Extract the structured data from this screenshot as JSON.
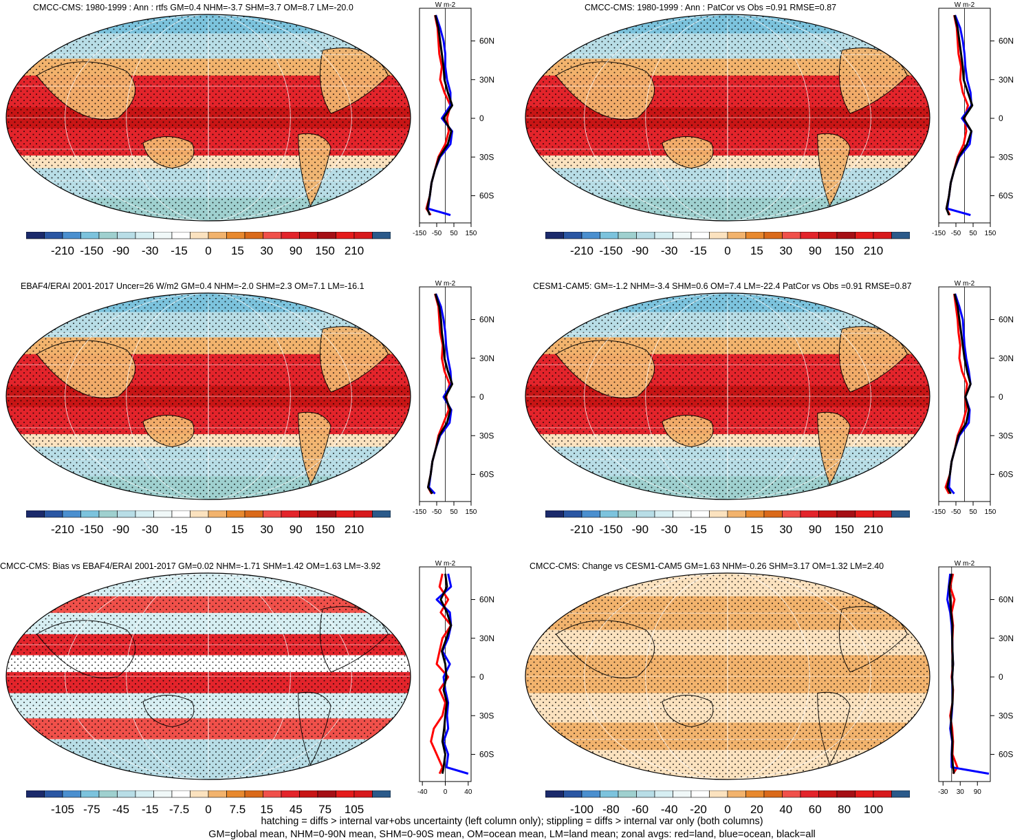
{
  "footer": {
    "line1": "hatching = diffs > internal var+obs uncertainty (left column only); stippling = diffs > internal var only (both columns)",
    "line2": "GM=global mean, NHM=0-90N mean, SHM=0-90S mean, OM=ocean mean, LM=land mean; zonal avgs: red=land, blue=ocean, black=all"
  },
  "colors": {
    "palette": [
      "#1b2a6b",
      "#2a56a3",
      "#4a8fcf",
      "#7cc3dd",
      "#9fd0cf",
      "#b8dde6",
      "#d6eef2",
      "#f0f8f8",
      "#ffffff",
      "#fbe2bf",
      "#f2b36d",
      "#e8892e",
      "#da6a1a",
      "#f0504a",
      "#e3242b",
      "#c81515",
      "#a50f15",
      "#e51b1b",
      "#d7191c",
      "#2b5a8a"
    ],
    "zonal_land": "#ff0000",
    "zonal_ocean": "#0000ff",
    "zonal_all": "#000000"
  },
  "chart_data": [
    {
      "type": "heatmap",
      "title": "CMCC-CMS: 1980-1999 : Ann : rtfs GM=0.4 NHM=-3.7 SHM=3.7 OM=8.7 LM=-20.0",
      "colorbar_ticks": [
        "-210",
        "-150",
        "-90",
        "-30",
        "-15",
        "0",
        "15",
        "30",
        "90",
        "150",
        "210"
      ],
      "zonal": {
        "unit": "W m-2",
        "xlim": [
          -150,
          150
        ],
        "xticks": [
          "-150",
          "-50",
          "50",
          "150"
        ],
        "lat_ticks": [
          "60N",
          "30N",
          "0",
          "30S",
          "60S"
        ],
        "lat": [
          80,
          70,
          60,
          50,
          40,
          30,
          20,
          10,
          0,
          -10,
          -20,
          -30,
          -40,
          -50,
          -60,
          -70,
          -75
        ],
        "land": [
          -60,
          -45,
          -40,
          -35,
          -20,
          -30,
          -5,
          30,
          10,
          20,
          0,
          -40,
          -60,
          -80,
          -90,
          -110,
          -85
        ],
        "ocean": [
          -55,
          -30,
          -10,
          0,
          0,
          10,
          30,
          30,
          -20,
          40,
          30,
          -30,
          -60,
          -80,
          -90,
          -100,
          30
        ],
        "all": [
          -58,
          -40,
          -30,
          -20,
          -10,
          -5,
          15,
          40,
          -10,
          35,
          15,
          -35,
          -60,
          -80,
          -90,
          -105,
          -90
        ]
      }
    },
    {
      "type": "heatmap",
      "title": "CMCC-CMS: 1980-1999 : Ann : PatCor vs Obs =0.91 RMSE=0.87",
      "colorbar_ticks": [
        "-210",
        "-150",
        "-90",
        "-30",
        "-15",
        "0",
        "15",
        "30",
        "90",
        "150",
        "210"
      ],
      "zonal": {
        "unit": "W m-2",
        "xlim": [
          -150,
          150
        ],
        "xticks": [
          "-150",
          "-50",
          "50",
          "150"
        ],
        "lat_ticks": [
          "60N",
          "30N",
          "0",
          "30S",
          "60S"
        ],
        "lat": [
          80,
          70,
          60,
          50,
          40,
          30,
          20,
          10,
          0,
          -10,
          -20,
          -30,
          -40,
          -50,
          -60,
          -70,
          -75
        ],
        "land": [
          -60,
          -45,
          -40,
          -35,
          -20,
          -25,
          -10,
          20,
          0,
          10,
          -5,
          -40,
          -60,
          -80,
          -90,
          -105,
          -85
        ],
        "ocean": [
          -55,
          -25,
          -10,
          0,
          5,
          15,
          35,
          40,
          -15,
          40,
          30,
          -30,
          -60,
          -80,
          -90,
          -100,
          35
        ],
        "all": [
          -58,
          -40,
          -30,
          -20,
          -10,
          -5,
          20,
          45,
          -5,
          40,
          15,
          -35,
          -60,
          -80,
          -90,
          -105,
          -90
        ]
      }
    },
    {
      "type": "heatmap",
      "title": "EBAF4/ERAI 2001-2017 Uncer=26 W/m2 GM=0.4 NHM=-2.0 SHM=2.3 OM=7.1 LM=-16.1",
      "colorbar_ticks": [
        "-210",
        "-150",
        "-90",
        "-30",
        "-15",
        "0",
        "15",
        "30",
        "90",
        "150",
        "210"
      ],
      "zonal": {
        "unit": "W m-2",
        "xlim": [
          -150,
          150
        ],
        "xticks": [
          "-150",
          "-50",
          "50",
          "150"
        ],
        "lat_ticks": [
          "60N",
          "30N",
          "0",
          "30S",
          "60S"
        ],
        "lat": [
          80,
          70,
          60,
          50,
          40,
          30,
          20,
          10,
          0,
          -10,
          -20,
          -30,
          -40,
          -50,
          -60,
          -70,
          -75
        ],
        "land": [
          -60,
          -40,
          -35,
          -30,
          -15,
          -20,
          -5,
          25,
          5,
          20,
          -10,
          -40,
          -55,
          -75,
          -85,
          -100,
          -80
        ],
        "ocean": [
          -55,
          -25,
          -10,
          0,
          5,
          15,
          30,
          35,
          -10,
          35,
          25,
          -30,
          -55,
          -75,
          -85,
          -95,
          -60
        ],
        "all": [
          -58,
          -35,
          -25,
          -20,
          -10,
          -5,
          15,
          40,
          0,
          30,
          10,
          -35,
          -55,
          -75,
          -85,
          -100,
          -75
        ]
      }
    },
    {
      "type": "heatmap",
      "title": "CESM1-CAM5: GM=-1.2 NHM=-3.4 SHM=0.6 OM=7.4 LM=-22.4 PatCor vs Obs =0.91 RMSE=0.87",
      "colorbar_ticks": [
        "-210",
        "-150",
        "-90",
        "-30",
        "-15",
        "0",
        "15",
        "30",
        "90",
        "150",
        "210"
      ],
      "zonal": {
        "unit": "W m-2",
        "xlim": [
          -150,
          150
        ],
        "xticks": [
          "-150",
          "-50",
          "50",
          "150"
        ],
        "lat_ticks": [
          "60N",
          "30N",
          "0",
          "30S",
          "60S"
        ],
        "lat": [
          80,
          70,
          60,
          50,
          40,
          30,
          20,
          10,
          0,
          -10,
          -20,
          -30,
          -40,
          -50,
          -60,
          -70,
          -75
        ],
        "land": [
          -60,
          -50,
          -40,
          -35,
          -25,
          -30,
          -15,
          15,
          5,
          10,
          -10,
          -40,
          -55,
          -75,
          -85,
          -110,
          -90
        ],
        "ocean": [
          -55,
          -30,
          -10,
          -5,
          0,
          10,
          25,
          35,
          5,
          30,
          25,
          -30,
          -55,
          -75,
          -85,
          -90,
          -60
        ],
        "all": [
          -58,
          -40,
          -30,
          -20,
          -10,
          0,
          15,
          35,
          5,
          25,
          10,
          -35,
          -55,
          -75,
          -85,
          -100,
          -80
        ]
      }
    },
    {
      "type": "heatmap",
      "title": "CMCC-CMS: Bias vs EBAF4/ERAI 2001-2017 GM=0.02 NHM=-1.71 SHM=1.42 OM=1.63 LM=-3.92",
      "colorbar_ticks": [
        "-105",
        "-75",
        "-45",
        "-15",
        "-7.5",
        "0",
        "7.5",
        "15",
        "45",
        "75",
        "105"
      ],
      "zonal": {
        "unit": "W m-2",
        "xlim": [
          -45,
          45
        ],
        "xticks": [
          "-40",
          "0",
          "40"
        ],
        "lat_ticks": [
          "60N",
          "30N",
          "0",
          "30S",
          "60S"
        ],
        "lat": [
          80,
          70,
          60,
          50,
          40,
          30,
          20,
          10,
          0,
          -10,
          -20,
          -30,
          -40,
          -50,
          -60,
          -70,
          -75
        ],
        "land": [
          -5,
          -10,
          5,
          -8,
          10,
          -5,
          -10,
          -15,
          5,
          -10,
          0,
          -5,
          -20,
          -25,
          -15,
          -5,
          -10
        ],
        "ocean": [
          5,
          10,
          -15,
          8,
          10,
          5,
          -5,
          8,
          -3,
          0,
          5,
          3,
          5,
          -3,
          5,
          2,
          40
        ],
        "all": [
          0,
          3,
          -8,
          3,
          10,
          2,
          -6,
          0,
          2,
          -3,
          3,
          0,
          -2,
          -5,
          0,
          -3,
          -5
        ]
      }
    },
    {
      "type": "heatmap",
      "title": "CMCC-CMS: Change vs CESM1-CAM5 GM=1.63 NHM=-0.26 SHM=3.17 OM=1.32 LM=2.40",
      "colorbar_ticks": [
        "-100",
        "-80",
        "-60",
        "-40",
        "-20",
        "0",
        "20",
        "40",
        "60",
        "80",
        "100"
      ],
      "zonal": {
        "unit": "W m-2",
        "xlim": [
          -45,
          135
        ],
        "xticks": [
          "-30",
          "30",
          "90"
        ],
        "lat_ticks": [
          "60N",
          "30N",
          "0",
          "30S",
          "60S"
        ],
        "lat": [
          80,
          70,
          60,
          50,
          40,
          30,
          20,
          10,
          0,
          -10,
          -20,
          -30,
          -40,
          -50,
          -60,
          -70,
          -75
        ],
        "land": [
          5,
          -5,
          10,
          0,
          5,
          3,
          2,
          5,
          0,
          5,
          3,
          -5,
          2,
          5,
          3,
          20,
          5
        ],
        "ocean": [
          -5,
          -10,
          -15,
          -5,
          0,
          2,
          3,
          5,
          2,
          3,
          3,
          0,
          -5,
          2,
          0,
          0,
          130
        ],
        "all": [
          0,
          -8,
          -5,
          -2,
          3,
          2,
          3,
          5,
          2,
          4,
          3,
          -2,
          -2,
          3,
          1,
          5,
          8
        ]
      }
    }
  ]
}
